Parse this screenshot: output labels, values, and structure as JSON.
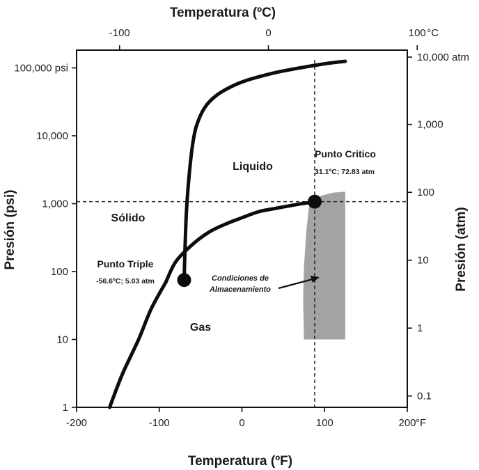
{
  "chart_data": {
    "type": "line",
    "title": "",
    "x_bottom": {
      "label": "Temperatura (ºF)",
      "range": [
        -200,
        200
      ],
      "ticks": [
        {
          "value": -200,
          "label": "-200"
        },
        {
          "value": -100,
          "label": "-100"
        },
        {
          "value": 0,
          "label": "0"
        },
        {
          "value": 100,
          "label": "100"
        },
        {
          "value": 200,
          "label": "200"
        }
      ],
      "unit_label": "°F"
    },
    "x_top": {
      "label": "Temperatura (ºC)",
      "ticks": [
        {
          "value": -100,
          "label": "-100"
        },
        {
          "value": 0,
          "label": "0"
        },
        {
          "value": 100,
          "label": "100"
        }
      ],
      "unit_label": "°C"
    },
    "y_left": {
      "label": "Presión (psi)",
      "scale": "log",
      "range": [
        1,
        200000
      ],
      "ticks": [
        {
          "value": 1,
          "label": "1"
        },
        {
          "value": 10,
          "label": "10"
        },
        {
          "value": 100,
          "label": "100"
        },
        {
          "value": 1000,
          "label": "1,000"
        },
        {
          "value": 10000,
          "label": "10,000"
        },
        {
          "value": 100000,
          "label": "100,000 psi"
        }
      ]
    },
    "y_right": {
      "label": "Presión (atm)",
      "scale": "log",
      "ticks": [
        {
          "value": 0.1,
          "label": "0.1"
        },
        {
          "value": 1,
          "label": "1"
        },
        {
          "value": 10,
          "label": "10"
        },
        {
          "value": 100,
          "label": "100"
        },
        {
          "value": 1000,
          "label": "1,000"
        },
        {
          "value": 10000,
          "label": "10,000 atm"
        }
      ]
    },
    "series": [
      {
        "points": [
          [
            -160,
            1
          ],
          [
            -145,
            3
          ],
          [
            -125,
            10
          ],
          [
            -109.9,
            28
          ],
          [
            -92,
            70
          ]
        ]
      },
      {
        "points": [
          [
            -92,
            70
          ],
          [
            -80,
            140
          ],
          [
            -60,
            250
          ],
          [
            -40,
            380
          ],
          [
            -20,
            500
          ],
          [
            0,
            620
          ],
          [
            20,
            760
          ],
          [
            40,
            850
          ],
          [
            60,
            940
          ],
          [
            70,
            990
          ],
          [
            80,
            1030
          ],
          [
            88,
            1070
          ]
        ]
      },
      {
        "points": [
          [
            -69.9,
            75
          ],
          [
            -69.5,
            120
          ],
          [
            -68.5,
            300
          ],
          [
            -67,
            800
          ],
          [
            -64,
            2500
          ],
          [
            -60,
            7000
          ],
          [
            -55,
            14000
          ],
          [
            -45,
            26000
          ],
          [
            -30,
            40000
          ],
          [
            -10,
            55000
          ],
          [
            10,
            68000
          ],
          [
            40,
            85000
          ],
          [
            70,
            100000
          ],
          [
            100,
            115000
          ],
          [
            125,
            125000
          ]
        ]
      }
    ],
    "critical_lines": {
      "x": 88,
      "y": 1070
    },
    "points": [
      {
        "name": "Punto Triple",
        "conditions": "-56.6ºC; 5.03 atm",
        "x": -69.9,
        "y": 75
      },
      {
        "name": "Punto Critico",
        "conditions": "31.1ºC; 72.83 atm",
        "x": 88,
        "y": 1070
      }
    ],
    "storage_region": {
      "label_lines": [
        "Condiciones de",
        "Almacenamiento"
      ],
      "color": "#a3a3a3",
      "outline": [
        [
          75,
          10
        ],
        [
          74,
          40
        ],
        [
          75,
          120
        ],
        [
          78,
          400
        ],
        [
          81,
          900
        ],
        [
          85,
          1100
        ],
        [
          95,
          1300
        ],
        [
          110,
          1450
        ],
        [
          125,
          1500
        ],
        [
          125,
          10
        ]
      ]
    },
    "regions": [
      "Sólido",
      "Liquido",
      "Gas"
    ],
    "grid": false
  }
}
